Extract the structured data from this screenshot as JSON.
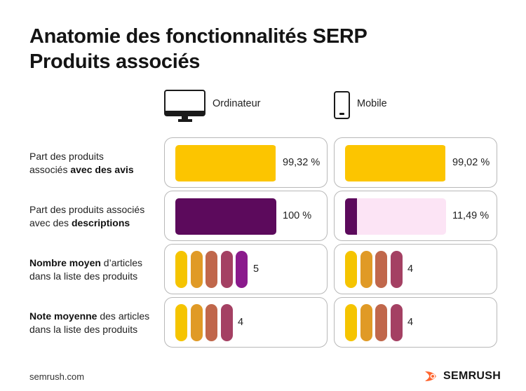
{
  "title": {
    "line1": "Anatomie des fonctionnalités SERP",
    "line2": "Produits associés"
  },
  "devices": [
    {
      "label": "Ordinateur",
      "icon": "desktop-monitor-icon"
    },
    {
      "label": "Mobile",
      "icon": "mobile-phone-icon"
    }
  ],
  "rows": [
    {
      "label_normal_1": "Part des produits",
      "label_normal_2": "associés ",
      "label_bold": "avec des avis",
      "label_normal_3": ""
    },
    {
      "label_normal_1": "Part des produits associés",
      "label_normal_2": "avec des ",
      "label_bold": "descriptions",
      "label_normal_3": ""
    },
    {
      "label_bold": "Nombre moyen",
      "label_normal_1": " d’articles",
      "label_normal_2": "dans la liste des produits"
    },
    {
      "label_bold": "Note moyenne",
      "label_normal_1": " des articles",
      "label_normal_2": "dans la liste des produits"
    }
  ],
  "chart_data": {
    "type": "bar",
    "series": [
      {
        "name": "Ordinateur",
        "values": [
          99.32,
          100,
          5,
          4
        ],
        "value_labels": [
          "99,32 %",
          "100 %",
          "5",
          "4"
        ]
      },
      {
        "name": "Mobile",
        "values": [
          99.02,
          11.49,
          4,
          4
        ],
        "value_labels": [
          "99,02 %",
          "11,49 %",
          "4",
          "4"
        ]
      }
    ],
    "categories": [
      "Part des produits associés avec des avis",
      "Part des produits associés avec des descriptions",
      "Nombre moyen d’articles dans la liste des produits",
      "Note moyenne des articles dans la liste des produits"
    ],
    "units": [
      "percent",
      "percent",
      "count",
      "count"
    ]
  },
  "colors": {
    "yellow": "#fcc500",
    "purple_dark": "#5c0a5c",
    "purple_light": "#fce4f5",
    "pill_sequence": [
      "#f5c400",
      "#e09a26",
      "#c0674b",
      "#a44063",
      "#8a1a8c"
    ],
    "semrush_orange": "#ff642d"
  },
  "footer": {
    "site": "semrush.com",
    "brand": "SEMRUSH"
  }
}
